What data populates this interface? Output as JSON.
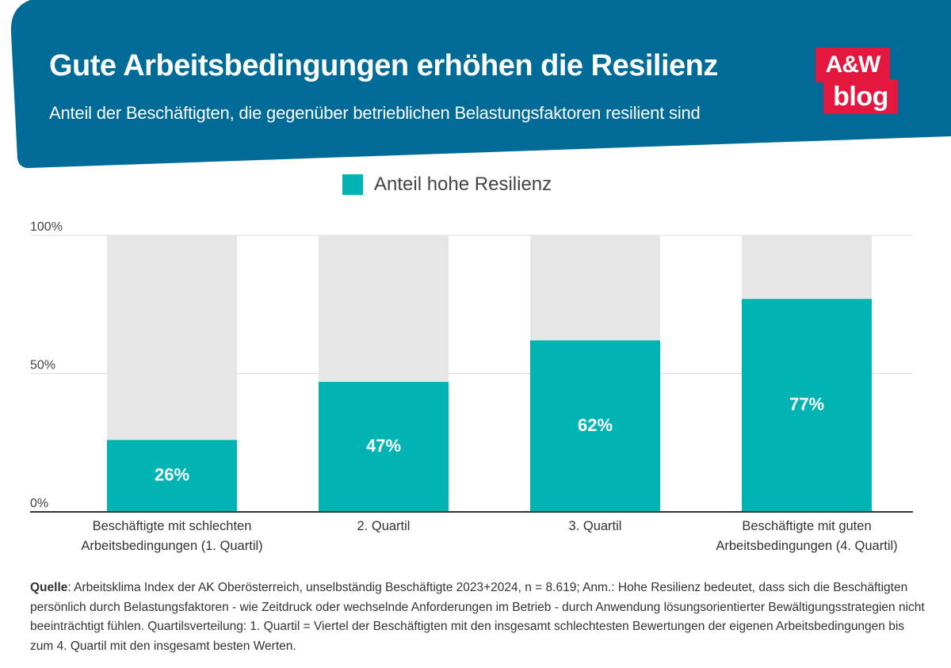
{
  "header": {
    "title": "Gute Arbeitsbedingungen erhöhen die Resilienz",
    "subtitle": "Anteil der Beschäftigten, die gegenüber betrieblichen Belastungsfaktoren resilient sind"
  },
  "logo": {
    "line1": "A&W",
    "line2": "blog"
  },
  "colors": {
    "banner": "#006b96",
    "bar": "#00b4b4",
    "background_bar": "#e6e6e6",
    "logo": "#e4173e"
  },
  "chart_data": {
    "type": "bar",
    "legend": [
      "Anteil hohe Resilienz"
    ],
    "categories": [
      [
        "Beschäftigte mit schlechten",
        "Arbeitsbedingungen (1. Quartil)"
      ],
      [
        "2. Quartil"
      ],
      [
        "3. Quartil"
      ],
      [
        "Beschäftigte mit guten",
        "Arbeitsbedingungen (4. Quartil)"
      ]
    ],
    "values": [
      26,
      47,
      62,
      77
    ],
    "value_labels": [
      "26%",
      "47%",
      "62%",
      "77%"
    ],
    "y_ticks": [
      {
        "value": 0,
        "label": "0%"
      },
      {
        "value": 50,
        "label": "50%"
      },
      {
        "value": 100,
        "label": "100%"
      }
    ],
    "ylim": [
      0,
      100
    ],
    "background_bar_value": 100
  },
  "source": {
    "label": "Quelle",
    "text": ": Arbeitsklima Index der AK Oberösterreich, unselbständig Beschäftigte 2023+2024, n = 8.619; Anm.: Hohe Resilienz bedeutet, dass sich die Beschäftigten persönlich durch Belastungsfaktoren - wie Zeitdruck oder wechselnde Anforderungen im Betrieb - durch Anwendung lösungsorientierter Bewältigungsstrategien nicht beeinträchtigt fühlen. Quartilsverteilung: 1. Quartil = Viertel der Beschäftigten mit den insgesamt schlechtesten Bewertungen der eigenen Arbeitsbedingungen bis zum 4. Quartil mit den insgesamt besten Werten."
  }
}
